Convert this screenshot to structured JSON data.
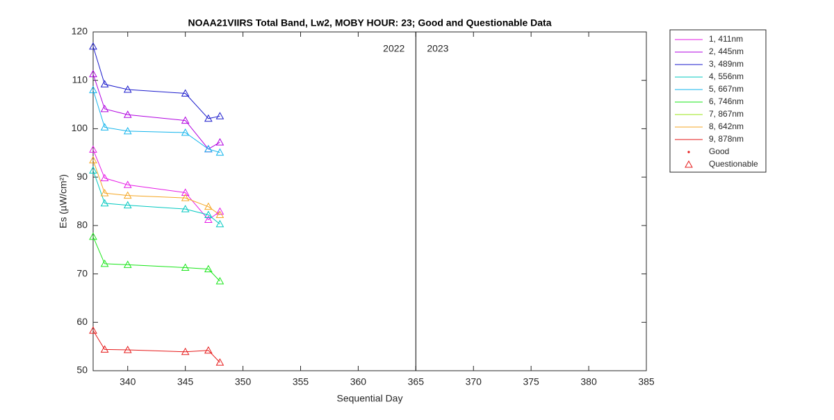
{
  "chart_data": {
    "type": "line",
    "title": "NOAA21VIIRS Total Band,  Lw2, MOBY HOUR: 23;  Good and Questionable Data",
    "xlabel": "Sequential Day",
    "ylabel": "Es (µW/cm²)",
    "x": [
      337,
      338,
      340,
      345,
      347,
      348
    ],
    "series": [
      {
        "name": "1, 411nm",
        "color": "#e619e6",
        "values": [
          95.7,
          89.8,
          88.4,
          86.8,
          81.2,
          82.9
        ]
      },
      {
        "name": "2, 445nm",
        "color": "#b000e0",
        "values": [
          111.3,
          104.1,
          102.9,
          101.7,
          95.8,
          97.2
        ]
      },
      {
        "name": "3, 489nm",
        "color": "#1a1acc",
        "values": [
          117,
          109.2,
          108.1,
          107.3,
          102.1,
          102.6
        ]
      },
      {
        "name": "4, 556nm",
        "color": "#00c8c0",
        "values": [
          91.4,
          84.6,
          84.2,
          83.4,
          82.2,
          80.3
        ]
      },
      {
        "name": "5, 667nm",
        "color": "#12b4ec",
        "values": [
          108,
          100.3,
          99.5,
          99.2,
          95.8,
          95.1
        ]
      },
      {
        "name": "6, 746nm",
        "color": "#19e619",
        "values": [
          77.7,
          72.1,
          71.9,
          71.3,
          71.0,
          68.5
        ]
      },
      {
        "name": "7, 867nm",
        "color": "#9be619",
        "values": [
          null,
          null,
          null,
          null,
          null,
          null
        ]
      },
      {
        "name": "8, 642nm",
        "color": "#f5a623",
        "values": [
          93.5,
          86.7,
          86.2,
          85.7,
          83.9,
          82.2
        ]
      },
      {
        "name": "9, 878nm",
        "color": "#e61919",
        "values": [
          58.3,
          54.4,
          54.3,
          53.9,
          54.2,
          51.7
        ]
      }
    ],
    "legend_extra": [
      "Good",
      "Questionable"
    ],
    "marker_legend_color": "#e61919",
    "divider_x": 365,
    "annotations": [
      "2022",
      "2023"
    ],
    "xlim": [
      337,
      385
    ],
    "xticks": [
      340,
      345,
      350,
      355,
      360,
      365,
      370,
      375,
      380,
      385
    ],
    "ylim": [
      50,
      120
    ],
    "yticks": [
      50,
      60,
      70,
      80,
      90,
      100,
      110,
      120
    ],
    "legend": "outside-right"
  }
}
